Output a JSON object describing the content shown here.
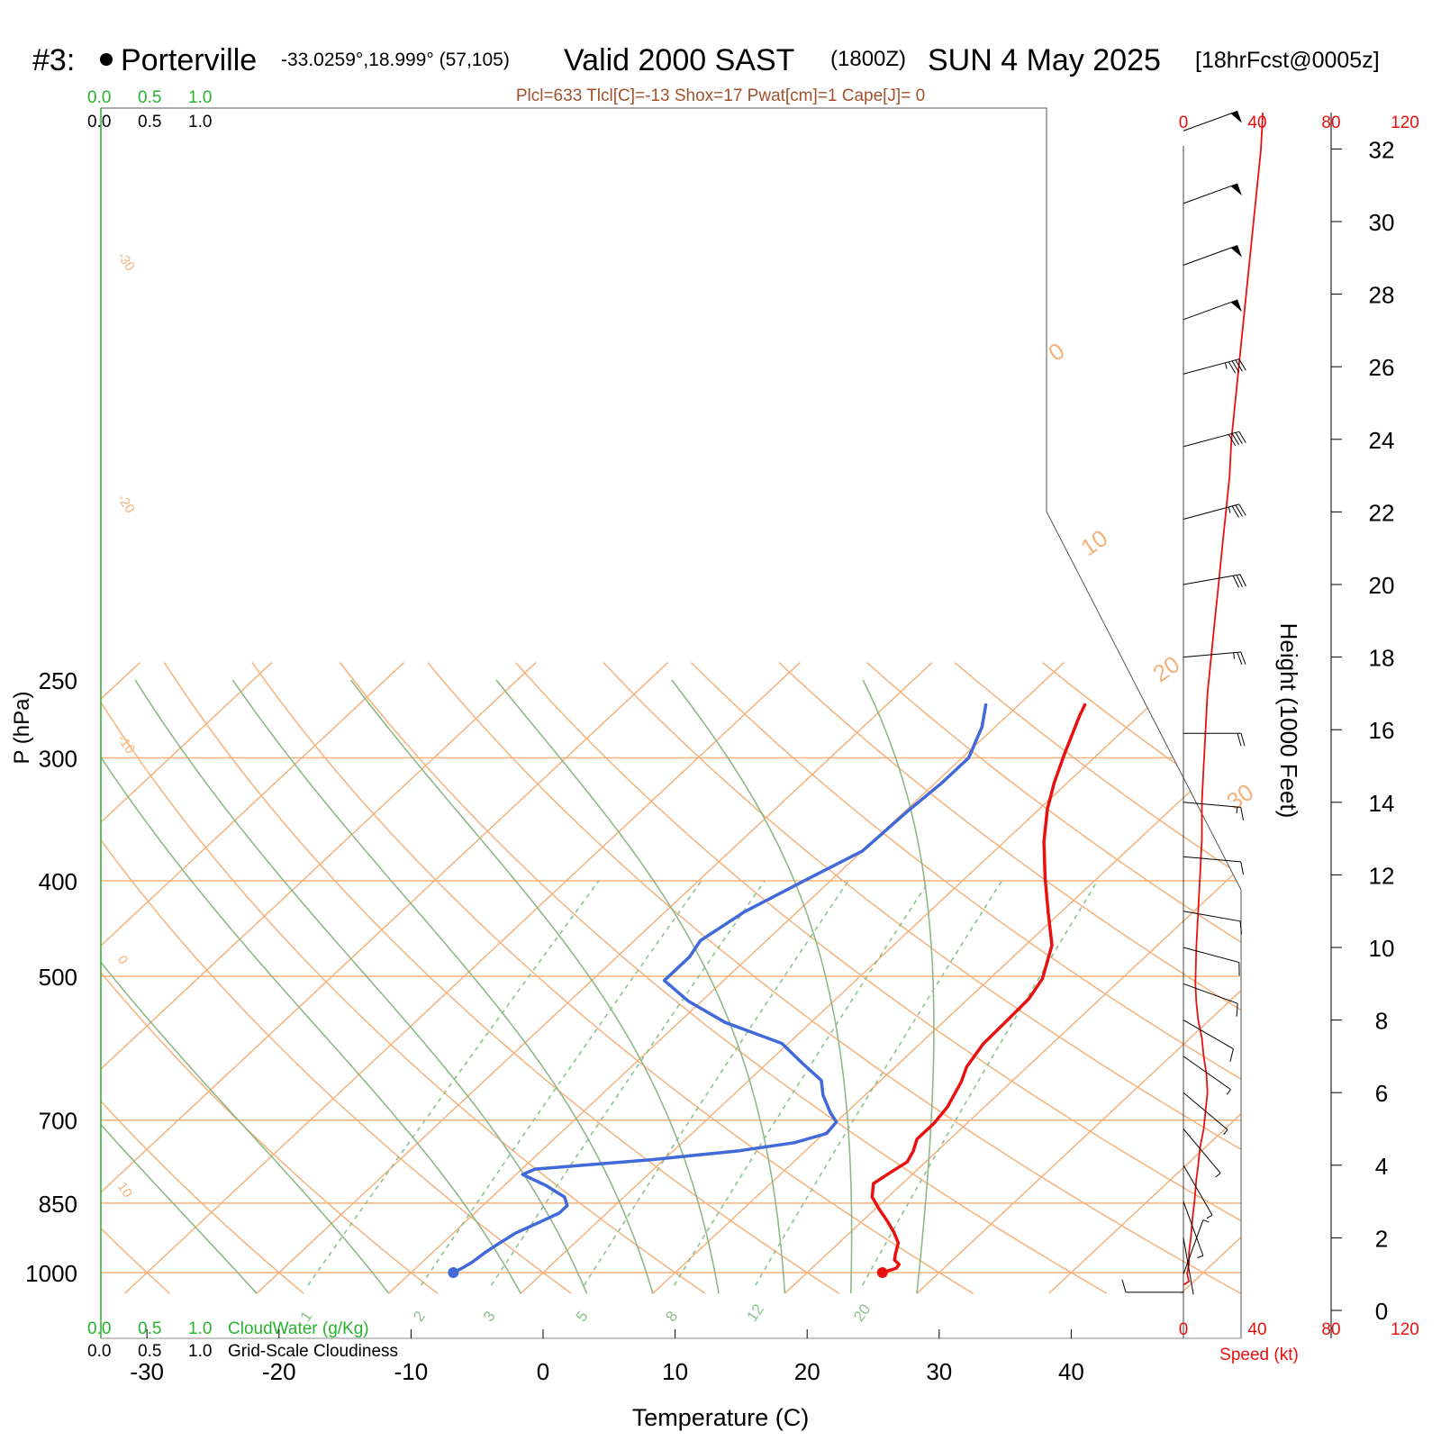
{
  "header": {
    "prefix": "#3:",
    "station": "Porterville",
    "location": "-33.0259°,18.999° (57,105)",
    "valid": "Valid 2000 SAST",
    "utc": "(1800Z)",
    "date": "SUN 4 May 2025",
    "forecast": "[18hrFcst@0005z]"
  },
  "indices": "Plcl=633 Tlcl[C]=-13 Shox=17 Pwat[cm]=1 Cape[J]= 0",
  "cloud_scale": {
    "values": [
      "0.0",
      "0.5",
      "1.0"
    ],
    "cloudwater_label": "CloudWater (g/Kg)",
    "cloudiness_label": "Grid-Scale Cloudiness"
  },
  "colors": {
    "isotherm": "#f5b27c",
    "dry_adiabat": "#f5b27c",
    "moist_adiabat": "#8fb888",
    "mixing_ratio": "#8fc08f",
    "temperature": "#e8110f",
    "dewpoint": "#4169d8",
    "wind_speed": "#e8110f",
    "cloud_green": "#27b32e"
  },
  "chart_data": {
    "type": "line",
    "title": "",
    "xlabel": "Temperature (C)",
    "ylabel": "P (hPa)",
    "xlim": [
      -33,
      36
    ],
    "ylim": [
      1000,
      250
    ],
    "x_ticks": [
      -30,
      -20,
      -10,
      0,
      10,
      20,
      30,
      40
    ],
    "pressure_ticks": [
      250,
      300,
      400,
      500,
      700,
      850,
      1000
    ],
    "dry_adiabat_labels": [
      "-30",
      "-20",
      "-10",
      "0",
      "10",
      "0",
      "10",
      "20",
      "30"
    ],
    "mixing_ratio_labels": [
      "1",
      "2",
      "3",
      "5",
      "8",
      "12",
      "20"
    ],
    "series": [
      {
        "name": "",
        "color": "#e8110f",
        "points": [
          [
            25.7,
            1000
          ],
          [
            26.4,
            990
          ],
          [
            26.3,
            981
          ],
          [
            25.6,
            971
          ],
          [
            25.2,
            958
          ],
          [
            24.5,
            933
          ],
          [
            23.3,
            910
          ],
          [
            21.8,
            885
          ],
          [
            20.3,
            862
          ],
          [
            18.8,
            838
          ],
          [
            17.8,
            812
          ],
          [
            18.2,
            791
          ],
          [
            18.6,
            772
          ],
          [
            18.2,
            753
          ],
          [
            17.5,
            732
          ],
          [
            17.5,
            705
          ],
          [
            17.2,
            679
          ],
          [
            16.2,
            640
          ],
          [
            15.4,
            618
          ],
          [
            14.8,
            586
          ],
          [
            14.7,
            552
          ],
          [
            14.6,
            527
          ],
          [
            14.0,
            503
          ],
          [
            12.0,
            465
          ],
          [
            9.0,
            430
          ],
          [
            6.0,
            397
          ],
          [
            3.0,
            365
          ],
          [
            0.6,
            338
          ],
          [
            -1.0,
            318
          ],
          [
            -2.5,
            298
          ],
          [
            -4.5,
            272
          ],
          [
            -5.0,
            265
          ]
        ]
      },
      {
        "name": "",
        "color": "#4169d8",
        "points": [
          [
            -6.8,
            1000
          ],
          [
            -6.5,
            990
          ],
          [
            -6.2,
            975
          ],
          [
            -6.1,
            963
          ],
          [
            -6.0,
            953
          ],
          [
            -5.7,
            934
          ],
          [
            -5.3,
            912
          ],
          [
            -4.4,
            890
          ],
          [
            -3.6,
            870
          ],
          [
            -3.6,
            855
          ],
          [
            -4.5,
            838
          ],
          [
            -6.8,
            816
          ],
          [
            -9.5,
            795
          ],
          [
            -9.0,
            785
          ],
          [
            -1.0,
            768
          ],
          [
            5.0,
            752
          ],
          [
            8.5,
            738
          ],
          [
            10.2,
            722
          ],
          [
            10.0,
            703
          ],
          [
            8.8,
            688
          ],
          [
            6.8,
            660
          ],
          [
            5.5,
            638
          ],
          [
            2.8,
            614
          ],
          [
            -0.5,
            585
          ],
          [
            -6.5,
            557
          ],
          [
            -11.0,
            530
          ],
          [
            -14.5,
            505
          ],
          [
            -14.5,
            478
          ],
          [
            -15.0,
            460
          ],
          [
            -14.0,
            430
          ],
          [
            -12.0,
            400
          ],
          [
            -10.0,
            373
          ],
          [
            -9.8,
            340
          ],
          [
            -9.5,
            318
          ],
          [
            -9.5,
            300
          ],
          [
            -11.0,
            279
          ],
          [
            -12.5,
            265
          ]
        ]
      }
    ],
    "wind_speed": {
      "xlabel": "Speed (kt)",
      "ticks": [
        0,
        40,
        80,
        120
      ],
      "points": [
        [
          0,
          0.7
        ],
        [
          3,
          0.8
        ],
        [
          2,
          1
        ],
        [
          3,
          1.3
        ],
        [
          3,
          1.6
        ],
        [
          4,
          2
        ],
        [
          5,
          2.6
        ],
        [
          6,
          3
        ],
        [
          7,
          3.6
        ],
        [
          8,
          4
        ],
        [
          9,
          4.5
        ],
        [
          11,
          5
        ],
        [
          12,
          5.5
        ],
        [
          13,
          6
        ],
        [
          12.5,
          6.5
        ],
        [
          11,
          7
        ],
        [
          10,
          7.5
        ],
        [
          8,
          8
        ],
        [
          7,
          8.5
        ],
        [
          6.5,
          9
        ],
        [
          7,
          10
        ],
        [
          8,
          11
        ],
        [
          9,
          12
        ],
        [
          10,
          13
        ],
        [
          10,
          14
        ],
        [
          11,
          15
        ],
        [
          12,
          16
        ],
        [
          13,
          17
        ],
        [
          15,
          18
        ],
        [
          17,
          19
        ],
        [
          19,
          20
        ],
        [
          21,
          21
        ],
        [
          23,
          22
        ],
        [
          25,
          23
        ],
        [
          26,
          24
        ],
        [
          28,
          25
        ],
        [
          30,
          26
        ],
        [
          32,
          27
        ],
        [
          34,
          28
        ],
        [
          36,
          29
        ],
        [
          38,
          30
        ],
        [
          40,
          31
        ],
        [
          42,
          32
        ],
        [
          43,
          33
        ]
      ]
    },
    "height_axis": {
      "label": "Height (1000 Feet)",
      "ticks": [
        0,
        2,
        4,
        6,
        8,
        10,
        12,
        14,
        16,
        18,
        20,
        22,
        24,
        26,
        28,
        30,
        32
      ]
    },
    "wind_barbs": [
      {
        "ft": 32.5,
        "dir": 250,
        "kt": 52
      },
      {
        "ft": 30.5,
        "dir": 250,
        "kt": 52
      },
      {
        "ft": 28.8,
        "dir": 250,
        "kt": 50
      },
      {
        "ft": 27.3,
        "dir": 250,
        "kt": 50
      },
      {
        "ft": 25.8,
        "dir": 255,
        "kt": 45
      },
      {
        "ft": 23.8,
        "dir": 255,
        "kt": 40
      },
      {
        "ft": 21.8,
        "dir": 255,
        "kt": 35
      },
      {
        "ft": 20,
        "dir": 260,
        "kt": 30
      },
      {
        "ft": 18,
        "dir": 265,
        "kt": 25
      },
      {
        "ft": 15.9,
        "dir": 270,
        "kt": 20
      },
      {
        "ft": 14,
        "dir": 275,
        "kt": 15
      },
      {
        "ft": 12.5,
        "dir": 275,
        "kt": 12
      },
      {
        "ft": 11,
        "dir": 280,
        "kt": 10
      },
      {
        "ft": 10,
        "dir": 285,
        "kt": 10
      },
      {
        "ft": 9,
        "dir": 290,
        "kt": 10
      },
      {
        "ft": 8,
        "dir": 300,
        "kt": 10
      },
      {
        "ft": 7,
        "dir": 305,
        "kt": 8
      },
      {
        "ft": 6,
        "dir": 310,
        "kt": 7
      },
      {
        "ft": 5,
        "dir": 320,
        "kt": 6
      },
      {
        "ft": 4,
        "dir": 330,
        "kt": 5
      },
      {
        "ft": 3,
        "dir": 340,
        "kt": 5
      },
      {
        "ft": 2,
        "dir": 350,
        "kt": 4
      },
      {
        "ft": 1,
        "dir": 200,
        "kt": 5
      },
      {
        "ft": 0.5,
        "dir": 90,
        "kt": 10
      }
    ]
  }
}
